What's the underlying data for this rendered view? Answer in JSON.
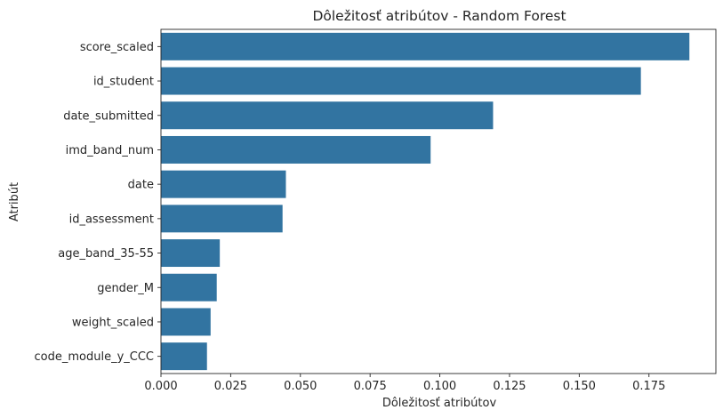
{
  "chart_data": {
    "type": "bar",
    "orientation": "horizontal",
    "title": "Dôležitosť atribútov - Random Forest",
    "xlabel": "Dôležitosť atribútov",
    "ylabel": "Atribút",
    "xlim": [
      0,
      0.199
    ],
    "xticks": [
      "0.000",
      "0.025",
      "0.050",
      "0.075",
      "0.100",
      "0.125",
      "0.150",
      "0.175"
    ],
    "xtick_values": [
      0,
      0.025,
      0.05,
      0.075,
      0.1,
      0.125,
      0.15,
      0.175
    ],
    "categories": [
      "score_scaled",
      "id_student",
      "date_submitted",
      "imd_band_num",
      "date",
      "id_assessment",
      "age_band_35-55",
      "gender_M",
      "weight_scaled",
      "code_module_y_CCC"
    ],
    "values": [
      0.1895,
      0.1721,
      0.1191,
      0.0967,
      0.0448,
      0.0436,
      0.0211,
      0.02,
      0.0178,
      0.0165
    ],
    "bar_color": "#3274a1",
    "grid": false
  }
}
